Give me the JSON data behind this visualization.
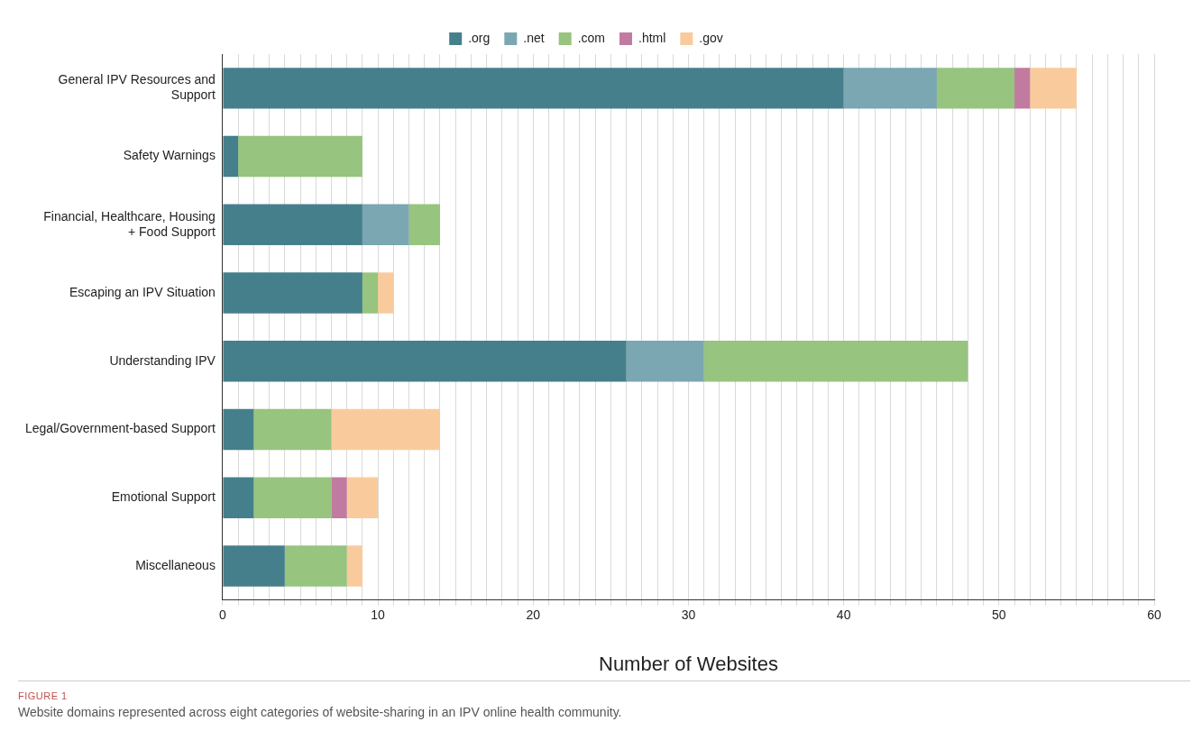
{
  "chart_data": {
    "type": "bar",
    "orientation": "horizontal",
    "stacked": true,
    "categories": [
      "General IPV Resources and Support",
      "Safety Warnings",
      "Financial, Healthcare, Housing + Food Support",
      "Escaping an IPV Situation",
      "Understanding IPV",
      "Legal/Government-based Support",
      "Emotional Support",
      "Miscellaneous"
    ],
    "series": [
      {
        "name": ".org",
        "color": "#467f8c",
        "values": [
          40,
          1,
          9,
          9,
          26,
          2,
          2,
          4
        ]
      },
      {
        "name": ".net",
        "color": "#7aa7b1",
        "values": [
          6,
          0,
          3,
          0,
          5,
          0,
          0,
          0
        ]
      },
      {
        "name": ".com",
        "color": "#97c47e",
        "values": [
          5,
          8,
          2,
          1,
          17,
          5,
          5,
          4
        ]
      },
      {
        "name": ".html",
        "color": "#c27ba0",
        "values": [
          1,
          0,
          0,
          0,
          0,
          0,
          1,
          0
        ]
      },
      {
        "name": ".gov",
        "color": "#f9cb9c",
        "values": [
          3,
          0,
          0,
          1,
          0,
          7,
          2,
          1
        ]
      }
    ],
    "xlabel": "Number of Websites",
    "xlim": [
      0,
      60
    ],
    "xticks": [
      0,
      {
        "value": 1,
        "label": null
      },
      {
        "value": 2,
        "label": null
      },
      {
        "value": 3,
        "label": null
      },
      {
        "value": 4,
        "label": null
      },
      {
        "value": 5,
        "label": null
      },
      {
        "value": 6,
        "label": null
      },
      {
        "value": 7,
        "label": null
      },
      {
        "value": 8,
        "label": null
      },
      {
        "value": 9,
        "label": null
      },
      10,
      {
        "value": 11,
        "label": null
      },
      {
        "value": 12,
        "label": null
      },
      {
        "value": 13,
        "label": null
      },
      {
        "value": 14,
        "label": null
      },
      {
        "value": 15,
        "label": null
      },
      {
        "value": 16,
        "label": null
      },
      {
        "value": 17,
        "label": null
      },
      {
        "value": 18,
        "label": null
      },
      {
        "value": 19,
        "label": null
      },
      20,
      {
        "value": 21,
        "label": null
      },
      {
        "value": 22,
        "label": null
      },
      {
        "value": 23,
        "label": null
      },
      {
        "value": 24,
        "label": null
      },
      {
        "value": 25,
        "label": null
      },
      {
        "value": 26,
        "label": null
      },
      {
        "value": 27,
        "label": null
      },
      {
        "value": 28,
        "label": null
      },
      {
        "value": 29,
        "label": null
      },
      30,
      {
        "value": 31,
        "label": null
      },
      {
        "value": 32,
        "label": null
      },
      {
        "value": 33,
        "label": null
      },
      {
        "value": 34,
        "label": null
      },
      {
        "value": 35,
        "label": null
      },
      {
        "value": 36,
        "label": null
      },
      {
        "value": 37,
        "label": null
      },
      {
        "value": 38,
        "label": null
      },
      {
        "value": 39,
        "label": null
      },
      40,
      {
        "value": 41,
        "label": null
      },
      {
        "value": 42,
        "label": null
      },
      {
        "value": 43,
        "label": null
      },
      {
        "value": 44,
        "label": null
      },
      {
        "value": 45,
        "label": null
      },
      {
        "value": 46,
        "label": null
      },
      {
        "value": 47,
        "label": null
      },
      {
        "value": 48,
        "label": null
      },
      {
        "value": 49,
        "label": null
      },
      50,
      {
        "value": 51,
        "label": null
      },
      {
        "value": 52,
        "label": null
      },
      {
        "value": 53,
        "label": null
      },
      {
        "value": 54,
        "label": null
      },
      {
        "value": 55,
        "label": null
      },
      {
        "value": 56,
        "label": null
      },
      {
        "value": 57,
        "label": null
      },
      {
        "value": 58,
        "label": null
      },
      {
        "value": 59,
        "label": null
      },
      60
    ],
    "grid": "x",
    "legend": "top",
    "annotations": [
      "FIGURE 1",
      "Website domains represented across eight categories of website-sharing in an IPV online health community."
    ]
  }
}
